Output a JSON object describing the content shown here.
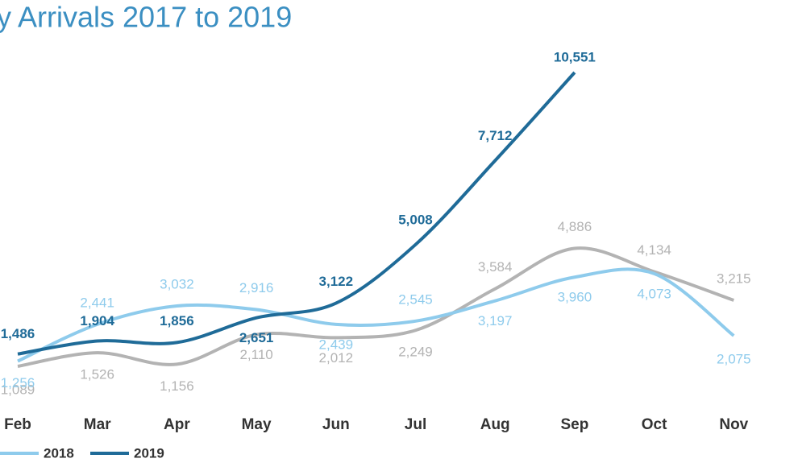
{
  "chart_data": {
    "type": "line",
    "title": "y Arrivals 2017 to 2019",
    "categories": [
      "Feb",
      "Mar",
      "Apr",
      "May",
      "Jun",
      "Jul",
      "Aug",
      "Sep",
      "Oct",
      "Nov"
    ],
    "series": [
      {
        "color": "#b3b3b3",
        "values": [
          1089,
          1526,
          1156,
          2110,
          2012,
          2249,
          3584,
          4886,
          4134,
          3215
        ],
        "value_labels": [
          "1,089",
          "1,526",
          "1,156",
          "2,110",
          "2,012",
          "2,249",
          "3,584",
          "4,886",
          "4,134",
          "3,215"
        ]
      },
      {
        "name": "2018",
        "color": "#8ecbec",
        "values": [
          1256,
          2441,
          3032,
          2916,
          2439,
          2545,
          3197,
          3960,
          4073,
          2075
        ],
        "value_labels": [
          "1,256",
          "2,441",
          "3,032",
          "2,916",
          "2,439",
          "2,545",
          "3,197",
          "3,960",
          "4,073",
          "2,075"
        ]
      },
      {
        "name": "2019",
        "color": "#1f6b98",
        "values": [
          1486,
          1904,
          1856,
          2651,
          3122,
          5008,
          7712,
          10551,
          null,
          null
        ],
        "value_labels": [
          "1,486",
          "1,904",
          "1,856",
          "2,651",
          "3,122",
          "5,008",
          "7,712",
          "10,551",
          null,
          null
        ]
      }
    ]
  }
}
